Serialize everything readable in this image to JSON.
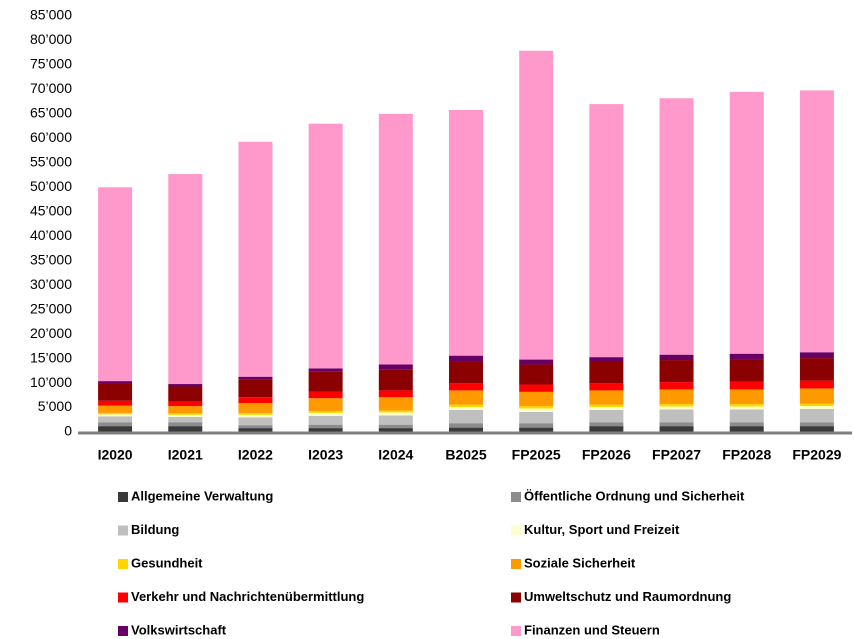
{
  "chart_data": {
    "type": "bar",
    "stacked": true,
    "categories": [
      "I2020",
      "I2021",
      "I2022",
      "I2023",
      "I2024",
      "B2025",
      "FP2025",
      "FP2026",
      "FP2027",
      "FP2028",
      "FP2029"
    ],
    "series": [
      {
        "name": "Allgemeine Verwaltung",
        "color": "#3a3a3a",
        "values": [
          1200,
          1200,
          800,
          800,
          800,
          900,
          900,
          1200,
          1200,
          1200,
          1200
        ]
      },
      {
        "name": "Öffentliche Ordnung und Sicherheit",
        "color": "#8c8c8c",
        "values": [
          800,
          800,
          600,
          700,
          700,
          900,
          900,
          800,
          800,
          800,
          800
        ]
      },
      {
        "name": "Bildung",
        "color": "#bfbfbf",
        "values": [
          1200,
          1100,
          1600,
          1800,
          1900,
          2700,
          2300,
          2500,
          2600,
          2600,
          2700
        ]
      },
      {
        "name": "Kultur, Sport und Freizeit",
        "color": "#ffffcc",
        "values": [
          400,
          400,
          500,
          600,
          600,
          600,
          700,
          600,
          600,
          600,
          600
        ]
      },
      {
        "name": "Gesundheit",
        "color": "#ffd700",
        "values": [
          300,
          300,
          400,
          400,
          400,
          500,
          500,
          500,
          500,
          500,
          500
        ]
      },
      {
        "name": "Soziale Sicherheit",
        "color": "#ff9900",
        "values": [
          1500,
          1500,
          2000,
          2600,
          2700,
          2900,
          2900,
          2900,
          3000,
          3000,
          3100
        ]
      },
      {
        "name": "Verkehr und Nachrichtenübermittlung",
        "color": "#ff0000",
        "values": [
          1000,
          900,
          1200,
          1300,
          1400,
          1500,
          1500,
          1500,
          1500,
          1600,
          1600
        ]
      },
      {
        "name": "Umweltschutz und Raumordnung",
        "color": "#8b0000",
        "values": [
          3500,
          3100,
          3600,
          4100,
          4300,
          4500,
          4100,
          4300,
          4500,
          4600,
          4600
        ]
      },
      {
        "name": "Volkswirtschaft",
        "color": "#660066",
        "values": [
          500,
          500,
          600,
          700,
          1000,
          1100,
          1000,
          1000,
          1100,
          1100,
          1200
        ]
      },
      {
        "name": "Finanzen und Steuern",
        "color": "#ff99cc",
        "values": [
          39600,
          42900,
          48000,
          50000,
          51200,
          50200,
          63100,
          51700,
          52400,
          53500,
          53500
        ]
      }
    ],
    "ylim": [
      0,
      85000
    ],
    "yticks": [
      0,
      {
        "value": 5000,
        "label": "5’000"
      },
      {
        "value": 10000,
        "label": "10’000"
      },
      {
        "value": 15000,
        "label": "15’000"
      },
      {
        "value": 20000,
        "label": "20’000"
      },
      {
        "value": 25000,
        "label": "25’000"
      },
      {
        "value": 30000,
        "label": "30’000"
      },
      {
        "value": 35000,
        "label": "35’000"
      },
      {
        "value": 40000,
        "label": "40’000"
      },
      {
        "value": 45000,
        "label": "45’000"
      },
      {
        "value": 50000,
        "label": "50’000"
      },
      {
        "value": 55000,
        "label": "55’000"
      },
      {
        "value": 60000,
        "label": "60’000"
      },
      {
        "value": 65000,
        "label": "65’000"
      },
      {
        "value": 70000,
        "label": "70’000"
      },
      {
        "value": 75000,
        "label": "75’000"
      },
      {
        "value": 80000,
        "label": "80’000"
      },
      {
        "value": 85000,
        "label": "85’000"
      }
    ],
    "grid": false,
    "legend": "bottom"
  }
}
